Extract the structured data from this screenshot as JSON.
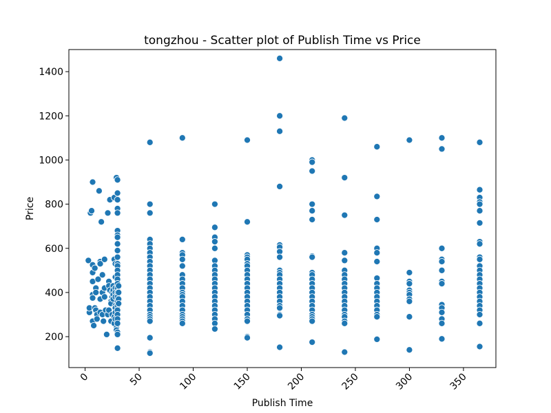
{
  "chart_data": {
    "type": "scatter",
    "title": "tongzhou - Scatter plot of Publish Time vs Price",
    "xlabel": "Publish Time",
    "ylabel": "Price",
    "xlim": [
      -15,
      380
    ],
    "ylim": [
      60,
      1500
    ],
    "xticks": [
      0,
      50,
      100,
      150,
      200,
      250,
      300,
      350
    ],
    "yticks": [
      200,
      400,
      600,
      800,
      1000,
      1200,
      1400
    ],
    "grid": false,
    "color": "#1f77b4",
    "series": [
      {
        "points": [
          [
            3,
            545
          ],
          [
            4,
            310
          ],
          [
            4,
            330
          ],
          [
            5,
            760
          ],
          [
            6,
            770
          ],
          [
            7,
            900
          ],
          [
            7,
            525
          ],
          [
            7,
            490
          ],
          [
            7,
            450
          ],
          [
            7,
            390
          ],
          [
            7,
            375
          ],
          [
            7,
            270
          ],
          [
            8,
            250
          ],
          [
            9,
            510
          ],
          [
            9,
            330
          ],
          [
            10,
            420
          ],
          [
            10,
            400
          ],
          [
            10,
            320
          ],
          [
            11,
            300
          ],
          [
            11,
            280
          ],
          [
            12,
            460
          ],
          [
            13,
            860
          ],
          [
            14,
            540
          ],
          [
            14,
            530
          ],
          [
            14,
            370
          ],
          [
            14,
            310
          ],
          [
            15,
            720
          ],
          [
            16,
            480
          ],
          [
            16,
            400
          ],
          [
            16,
            300
          ],
          [
            17,
            270
          ],
          [
            18,
            550
          ],
          [
            18,
            420
          ],
          [
            18,
            380
          ],
          [
            19,
            320
          ],
          [
            20,
            210
          ],
          [
            21,
            760
          ],
          [
            21,
            300
          ],
          [
            22,
            450
          ],
          [
            22,
            430
          ],
          [
            22,
            320
          ],
          [
            23,
            820
          ],
          [
            23,
            410
          ],
          [
            24,
            360
          ],
          [
            24,
            350
          ],
          [
            24,
            270
          ],
          [
            25,
            400
          ],
          [
            25,
            380
          ],
          [
            25,
            300
          ],
          [
            26,
            430
          ],
          [
            26,
            410
          ],
          [
            26,
            390
          ],
          [
            26,
            370
          ],
          [
            27,
            830
          ],
          [
            27,
            550
          ],
          [
            27,
            290
          ],
          [
            27,
            260
          ],
          [
            28,
            530
          ],
          [
            28,
            470
          ],
          [
            28,
            420
          ],
          [
            28,
            400
          ],
          [
            28,
            380
          ],
          [
            28,
            340
          ],
          [
            28,
            330
          ],
          [
            28,
            310
          ],
          [
            28,
            280
          ],
          [
            29,
            240
          ],
          [
            29,
            230
          ],
          [
            29,
            920
          ],
          [
            30,
            910
          ],
          [
            30,
            850
          ],
          [
            30,
            820
          ],
          [
            30,
            780
          ],
          [
            30,
            760
          ],
          [
            30,
            680
          ],
          [
            30,
            660
          ],
          [
            30,
            650
          ],
          [
            30,
            620
          ],
          [
            30,
            590
          ],
          [
            30,
            560
          ],
          [
            30,
            530
          ],
          [
            30,
            520
          ],
          [
            30,
            500
          ],
          [
            30,
            480
          ],
          [
            30,
            460
          ],
          [
            30,
            440
          ],
          [
            30,
            420
          ],
          [
            30,
            400
          ],
          [
            30,
            380
          ],
          [
            30,
            360
          ],
          [
            30,
            340
          ],
          [
            30,
            320
          ],
          [
            30,
            300
          ],
          [
            30,
            280
          ],
          [
            30,
            260
          ],
          [
            30,
            220
          ],
          [
            30,
            210
          ],
          [
            30,
            148
          ],
          [
            31,
            430
          ],
          [
            31,
            400
          ],
          [
            31,
            370
          ],
          [
            31,
            350
          ],
          [
            60,
            1080
          ],
          [
            60,
            800
          ],
          [
            60,
            760
          ],
          [
            60,
            640
          ],
          [
            60,
            620
          ],
          [
            60,
            600
          ],
          [
            60,
            580
          ],
          [
            60,
            560
          ],
          [
            60,
            540
          ],
          [
            60,
            520
          ],
          [
            60,
            500
          ],
          [
            60,
            480
          ],
          [
            60,
            460
          ],
          [
            60,
            440
          ],
          [
            60,
            420
          ],
          [
            60,
            400
          ],
          [
            60,
            380
          ],
          [
            60,
            360
          ],
          [
            60,
            340
          ],
          [
            60,
            320
          ],
          [
            60,
            300
          ],
          [
            60,
            290
          ],
          [
            60,
            280
          ],
          [
            60,
            270
          ],
          [
            60,
            195
          ],
          [
            60,
            130
          ],
          [
            60,
            125
          ],
          [
            90,
            1100
          ],
          [
            90,
            640
          ],
          [
            90,
            580
          ],
          [
            90,
            570
          ],
          [
            90,
            550
          ],
          [
            90,
            520
          ],
          [
            90,
            480
          ],
          [
            90,
            460
          ],
          [
            90,
            440
          ],
          [
            90,
            420
          ],
          [
            90,
            400
          ],
          [
            90,
            390
          ],
          [
            90,
            380
          ],
          [
            90,
            360
          ],
          [
            90,
            340
          ],
          [
            90,
            320
          ],
          [
            90,
            300
          ],
          [
            90,
            290
          ],
          [
            90,
            280
          ],
          [
            90,
            270
          ],
          [
            90,
            260
          ],
          [
            120,
            800
          ],
          [
            120,
            695
          ],
          [
            120,
            650
          ],
          [
            120,
            630
          ],
          [
            120,
            600
          ],
          [
            120,
            545
          ],
          [
            120,
            520
          ],
          [
            120,
            500
          ],
          [
            120,
            480
          ],
          [
            120,
            460
          ],
          [
            120,
            440
          ],
          [
            120,
            420
          ],
          [
            120,
            400
          ],
          [
            120,
            380
          ],
          [
            120,
            360
          ],
          [
            120,
            340
          ],
          [
            120,
            320
          ],
          [
            120,
            300
          ],
          [
            120,
            280
          ],
          [
            120,
            260
          ],
          [
            120,
            235
          ],
          [
            150,
            1090
          ],
          [
            150,
            720
          ],
          [
            150,
            570
          ],
          [
            150,
            560
          ],
          [
            150,
            550
          ],
          [
            150,
            530
          ],
          [
            150,
            520
          ],
          [
            150,
            500
          ],
          [
            150,
            480
          ],
          [
            150,
            460
          ],
          [
            150,
            440
          ],
          [
            150,
            420
          ],
          [
            150,
            400
          ],
          [
            150,
            380
          ],
          [
            150,
            360
          ],
          [
            150,
            340
          ],
          [
            150,
            320
          ],
          [
            150,
            300
          ],
          [
            150,
            280
          ],
          [
            150,
            270
          ],
          [
            150,
            200
          ],
          [
            150,
            195
          ],
          [
            180,
            1460
          ],
          [
            180,
            1200
          ],
          [
            180,
            1130
          ],
          [
            180,
            880
          ],
          [
            180,
            615
          ],
          [
            180,
            605
          ],
          [
            180,
            585
          ],
          [
            180,
            560
          ],
          [
            180,
            500
          ],
          [
            180,
            490
          ],
          [
            180,
            480
          ],
          [
            180,
            460
          ],
          [
            180,
            440
          ],
          [
            180,
            420
          ],
          [
            180,
            400
          ],
          [
            180,
            380
          ],
          [
            180,
            360
          ],
          [
            180,
            340
          ],
          [
            180,
            330
          ],
          [
            180,
            300
          ],
          [
            180,
            295
          ],
          [
            180,
            152
          ],
          [
            210,
            1000
          ],
          [
            210,
            990
          ],
          [
            210,
            950
          ],
          [
            210,
            800
          ],
          [
            210,
            770
          ],
          [
            210,
            730
          ],
          [
            210,
            565
          ],
          [
            210,
            560
          ],
          [
            210,
            490
          ],
          [
            210,
            480
          ],
          [
            210,
            460
          ],
          [
            210,
            440
          ],
          [
            210,
            420
          ],
          [
            210,
            400
          ],
          [
            210,
            380
          ],
          [
            210,
            360
          ],
          [
            210,
            340
          ],
          [
            210,
            320
          ],
          [
            210,
            300
          ],
          [
            210,
            290
          ],
          [
            210,
            280
          ],
          [
            210,
            270
          ],
          [
            210,
            175
          ],
          [
            240,
            1190
          ],
          [
            240,
            920
          ],
          [
            240,
            750
          ],
          [
            240,
            580
          ],
          [
            240,
            545
          ],
          [
            240,
            500
          ],
          [
            240,
            480
          ],
          [
            240,
            460
          ],
          [
            240,
            440
          ],
          [
            240,
            420
          ],
          [
            240,
            400
          ],
          [
            240,
            380
          ],
          [
            240,
            360
          ],
          [
            240,
            340
          ],
          [
            240,
            320
          ],
          [
            240,
            300
          ],
          [
            240,
            290
          ],
          [
            240,
            270
          ],
          [
            240,
            260
          ],
          [
            240,
            130
          ],
          [
            270,
            1060
          ],
          [
            270,
            835
          ],
          [
            270,
            730
          ],
          [
            270,
            600
          ],
          [
            270,
            580
          ],
          [
            270,
            540
          ],
          [
            270,
            465
          ],
          [
            270,
            440
          ],
          [
            270,
            420
          ],
          [
            270,
            400
          ],
          [
            270,
            380
          ],
          [
            270,
            360
          ],
          [
            270,
            340
          ],
          [
            270,
            320
          ],
          [
            270,
            300
          ],
          [
            270,
            290
          ],
          [
            270,
            188
          ],
          [
            300,
            1090
          ],
          [
            300,
            490
          ],
          [
            300,
            450
          ],
          [
            300,
            440
          ],
          [
            300,
            410
          ],
          [
            300,
            400
          ],
          [
            300,
            390
          ],
          [
            300,
            370
          ],
          [
            300,
            360
          ],
          [
            300,
            290
          ],
          [
            300,
            140
          ],
          [
            330,
            1100
          ],
          [
            330,
            1050
          ],
          [
            330,
            600
          ],
          [
            330,
            550
          ],
          [
            330,
            540
          ],
          [
            330,
            500
          ],
          [
            330,
            450
          ],
          [
            330,
            440
          ],
          [
            330,
            345
          ],
          [
            330,
            330
          ],
          [
            330,
            310
          ],
          [
            330,
            280
          ],
          [
            330,
            260
          ],
          [
            330,
            190
          ],
          [
            365,
            1080
          ],
          [
            365,
            865
          ],
          [
            365,
            830
          ],
          [
            365,
            810
          ],
          [
            365,
            800
          ],
          [
            365,
            770
          ],
          [
            365,
            715
          ],
          [
            365,
            630
          ],
          [
            365,
            620
          ],
          [
            365,
            560
          ],
          [
            365,
            550
          ],
          [
            365,
            520
          ],
          [
            365,
            500
          ],
          [
            365,
            480
          ],
          [
            365,
            460
          ],
          [
            365,
            440
          ],
          [
            365,
            420
          ],
          [
            365,
            400
          ],
          [
            365,
            380
          ],
          [
            365,
            360
          ],
          [
            365,
            340
          ],
          [
            365,
            320
          ],
          [
            365,
            300
          ],
          [
            365,
            260
          ],
          [
            365,
            155
          ]
        ]
      }
    ]
  }
}
